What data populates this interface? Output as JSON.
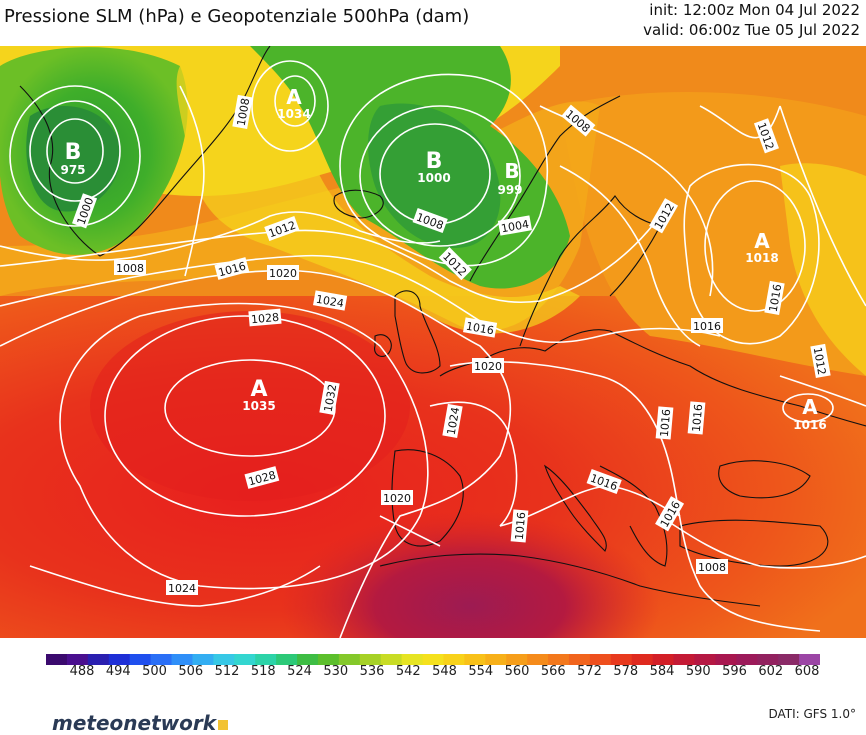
{
  "header": {
    "title": "Pressione SLM (hPa) e Geopotenziale 500hPa (dam)",
    "init": "init: 12:00z Mon 04 Jul 2022",
    "valid": "valid: 06:00z Tue 05 Jul 2022"
  },
  "centers": {
    "low_greenland_sw": {
      "letter": "B",
      "value": "975"
    },
    "high_greenland_ne": {
      "letter": "A",
      "value": "1034"
    },
    "low_norwegian_sea": {
      "letter": "B",
      "value": "1000"
    },
    "low_norway": {
      "letter": "B",
      "value": "999"
    },
    "high_russia": {
      "letter": "A",
      "value": "1018"
    },
    "high_black_sea": {
      "letter": "A",
      "value": "1016"
    },
    "high_azores": {
      "letter": "A",
      "value": "1035"
    }
  },
  "isobar_labels": {
    "l1000": "1000",
    "l1004": "1004",
    "l1008a": "1008",
    "l1008b": "1008",
    "l1008c": "1008",
    "l1008d": "1008",
    "l1008e": "1008",
    "l1012a": "1012",
    "l1012b": "1012",
    "l1012c": "1012",
    "l1012d": "1012",
    "l1012e": "1012",
    "l1016a": "1016",
    "l1016b": "1016",
    "l1016c": "1016",
    "l1016d": "1016",
    "l1016e": "1016",
    "l1016f": "1016",
    "l1016g": "1016",
    "l1016h": "1016",
    "l1016i": "1016",
    "l1020a": "1020",
    "l1020b": "1020",
    "l1020c": "1020",
    "l1024a": "1024",
    "l1024b": "1024",
    "l1024c": "1024",
    "l1028a": "1028",
    "l1028b": "1028",
    "l1032": "1032"
  },
  "legend": {
    "ticks": [
      "488",
      "494",
      "500",
      "506",
      "512",
      "518",
      "524",
      "530",
      "536",
      "542",
      "548",
      "554",
      "560",
      "566",
      "572",
      "578",
      "584",
      "590",
      "596",
      "602",
      "608"
    ],
    "colors": [
      "#3b0a6e",
      "#4a0f8f",
      "#2a1fb0",
      "#1e2fd6",
      "#1f4fee",
      "#2a6ff6",
      "#2f8ff8",
      "#33aef2",
      "#37c8e6",
      "#33d6d0",
      "#2cd3a8",
      "#2cc978",
      "#3ebd44",
      "#5cbf2c",
      "#84c82a",
      "#a6d126",
      "#c8dc25",
      "#e6e423",
      "#f5e11d",
      "#f8d21a",
      "#f8c119",
      "#f7b019",
      "#f69e1a",
      "#f58b1b",
      "#f3781c",
      "#f1641d",
      "#ee4f1e",
      "#e83a1e",
      "#df2a1f",
      "#d31f27",
      "#c41a35",
      "#b51843",
      "#a8174f",
      "#9c1a5a",
      "#92215f",
      "#8a2a67",
      "#9b45a5"
    ]
  },
  "footer": {
    "logo_text": "meteonetwork",
    "source": "DATI: GFS 1.0°"
  }
}
